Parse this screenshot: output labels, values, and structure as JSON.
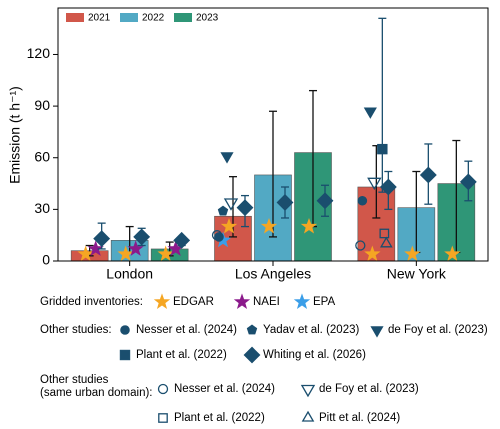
{
  "chart_data": {
    "type": "bar",
    "ylabel": "Emission (t h⁻¹)",
    "categories": [
      "London",
      "Los Angeles",
      "New York"
    ],
    "ylim": [
      0,
      147
    ],
    "yticks": [
      0,
      30,
      60,
      90,
      120
    ],
    "legend": "upper left",
    "series": [
      {
        "name": "2021",
        "color": "#d1574a",
        "values": [
          6,
          26,
          43
        ],
        "lower": [
          3,
          14,
          25
        ],
        "upper": [
          9,
          49,
          67
        ]
      },
      {
        "name": "2022",
        "color": "#52a9c4",
        "values": [
          12,
          50,
          31
        ],
        "lower": [
          5,
          14,
          5
        ],
        "upper": [
          20,
          87,
          52
        ]
      },
      {
        "name": "2023",
        "color": "#2f9677",
        "values": [
          7,
          63,
          45
        ],
        "lower": [
          3,
          20,
          5
        ],
        "upper": [
          11,
          99,
          70
        ]
      }
    ],
    "groups": [
      {
        "label": [
          "Gridded inventories:"
        ],
        "studies": [
          {
            "name": "EDGAR",
            "marker": "star",
            "filled": true,
            "color": "#f5a623",
            "values": [
              [
                4,
                4,
                4
              ],
              [
                20,
                20,
                20
              ],
              [
                4,
                4,
                4
              ]
            ]
          },
          {
            "name": "NAEI",
            "marker": "star",
            "filled": true,
            "color": "#8b1a8b",
            "values": [
              [
                7,
                7,
                7
              ],
              [
                null,
                null,
                null
              ],
              [
                null,
                null,
                null
              ]
            ]
          },
          {
            "name": "EPA",
            "marker": "star",
            "filled": true,
            "color": "#3a9ee8",
            "values": [
              [
                null,
                null,
                null
              ],
              [
                12,
                null,
                null
              ],
              [
                null,
                null,
                null
              ]
            ]
          }
        ]
      },
      {
        "label": [
          "Other studies:"
        ],
        "studies": [
          {
            "name": "Nesser et al. (2024)",
            "marker": "circle",
            "filled": true,
            "color": "#1a4e6e",
            "values": [
              [
                null,
                null,
                null
              ],
              [
                14,
                null,
                null
              ],
              [
                35,
                null,
                null
              ]
            ]
          },
          {
            "name": "Yadav et al. (2023)",
            "marker": "pentagon",
            "filled": true,
            "color": "#1a4e6e",
            "values": [
              [
                null,
                null,
                null
              ],
              [
                29,
                null,
                null
              ],
              [
                null,
                null,
                null
              ]
            ]
          },
          {
            "name": "de Foy et al. (2023)",
            "marker": "triangle-down",
            "filled": true,
            "color": "#1a4e6e",
            "values": [
              [
                null,
                null,
                null
              ],
              [
                61,
                null,
                null
              ],
              [
                87,
                null,
                null
              ]
            ]
          },
          {
            "name": "Plant et al. (2022)",
            "marker": "square",
            "filled": true,
            "color": "#1a4e6e",
            "values": [
              [
                null,
                null,
                null
              ],
              [
                null,
                null,
                null
              ],
              [
                65,
                null,
                null
              ]
            ],
            "lower": [
              [
                null,
                null,
                null
              ],
              [
                null,
                null,
                null
              ],
              [
                40,
                null,
                null
              ]
            ],
            "upper": [
              [
                null,
                null,
                null
              ],
              [
                null,
                null,
                null
              ],
              [
                141,
                null,
                null
              ]
            ]
          },
          {
            "name": "Whiting et al. (2026)",
            "marker": "diamond",
            "filled": true,
            "color": "#1a4e6e",
            "values": [
              [
                13,
                14,
                12
              ],
              [
                31,
                34,
                35
              ],
              [
                43,
                50,
                46
              ]
            ],
            "lower": [
              [
                7,
                9,
                9
              ],
              [
                20,
                25,
                26
              ],
              [
                30,
                33,
                35
              ]
            ],
            "upper": [
              [
                22,
                19,
                14
              ],
              [
                38,
                43,
                44
              ],
              [
                52,
                68,
                58
              ]
            ]
          }
        ]
      },
      {
        "label": [
          "Other studies",
          "(same urban domain):"
        ],
        "studies": [
          {
            "name": "Nesser et al. (2024)",
            "marker": "circle",
            "filled": false,
            "color": "#1a4e6e",
            "values": [
              [
                null,
                null,
                null
              ],
              [
                15,
                null,
                null
              ],
              [
                9,
                null,
                null
              ]
            ]
          },
          {
            "name": "de Foy et al. (2023)",
            "marker": "triangle-down",
            "filled": false,
            "color": "#1a4e6e",
            "values": [
              [
                null,
                null,
                null
              ],
              [
                34,
                null,
                null
              ],
              [
                46,
                null,
                null
              ]
            ]
          },
          {
            "name": "Plant et al. (2022)",
            "marker": "square",
            "filled": false,
            "color": "#1a4e6e",
            "values": [
              [
                null,
                null,
                null
              ],
              [
                null,
                null,
                null
              ],
              [
                16,
                null,
                null
              ]
            ]
          },
          {
            "name": "Pitt et al. (2024)",
            "marker": "triangle-up",
            "filled": false,
            "color": "#1a4e6e",
            "values": [
              [
                null,
                null,
                null
              ],
              [
                null,
                null,
                null
              ],
              [
                10,
                null,
                null
              ]
            ]
          }
        ]
      }
    ]
  }
}
